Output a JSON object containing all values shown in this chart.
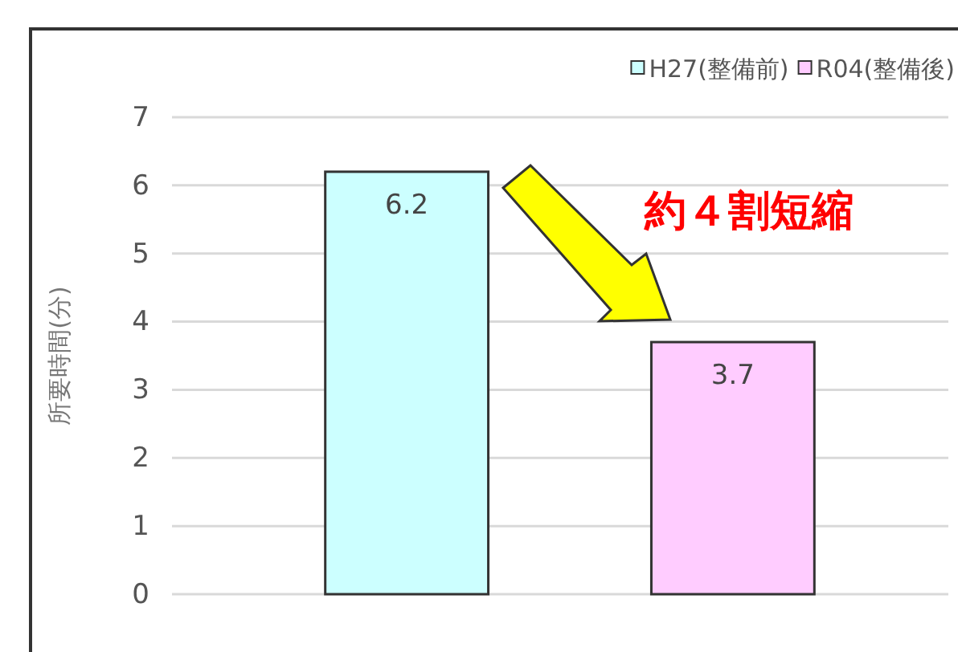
{
  "chart_data": {
    "type": "bar",
    "ylabel": "所要時間(分)",
    "categories": [
      null
    ],
    "series": [
      {
        "name": "H27(整備前)",
        "color": "#ccffff",
        "values": [
          6.2
        ]
      },
      {
        "name": "R04(整備後)",
        "color": "#ffccff",
        "values": [
          3.7
        ]
      }
    ],
    "ylim": [
      0,
      7
    ],
    "yticks": [
      0,
      1,
      2,
      3,
      4,
      5,
      6,
      7
    ],
    "grid": "y",
    "legend": "top right",
    "data_labels": true,
    "annotations": [
      "約４割短縮"
    ]
  }
}
